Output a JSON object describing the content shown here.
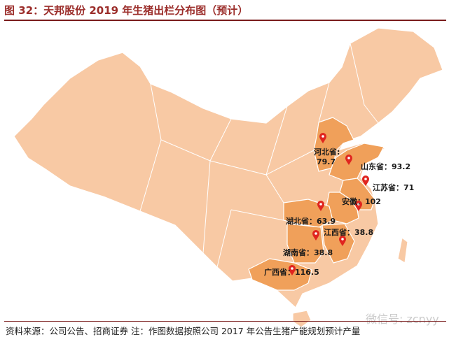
{
  "title": "图 32：天邦股份 2019 年生猪出栏分布图（预计）",
  "footer": "资料来源：公司公告、招商证券  注：作图数据按照公司 2017 年公告生猪产能规划预计产量",
  "watermark": "微信号: zcnyy",
  "colors": {
    "base": "#f8c9a4",
    "highlight": "#f0a05a",
    "pin": "#e0251f",
    "title": "#9b2d2a",
    "border": "#ffffff"
  },
  "provinces": [
    {
      "name": "河北省",
      "value": 79.7,
      "label_line1": "河北省:",
      "label_line2": "79.7"
    },
    {
      "name": "山东省",
      "value": 93.2,
      "label": "山东省：93.2"
    },
    {
      "name": "江苏省",
      "value": 71,
      "label": "江苏省：71"
    },
    {
      "name": "安徽",
      "value": 102,
      "label": "安徽：102"
    },
    {
      "name": "湖北省",
      "value": 63.9,
      "label": "湖北省：63.9"
    },
    {
      "name": "江西省",
      "value": 38.8,
      "label": "江西省：38.8"
    },
    {
      "name": "湖南省",
      "value": 38.8,
      "label": "湖南省：38.8"
    },
    {
      "name": "广西省",
      "value": 116.5,
      "label": "广西省：116.5"
    }
  ]
}
